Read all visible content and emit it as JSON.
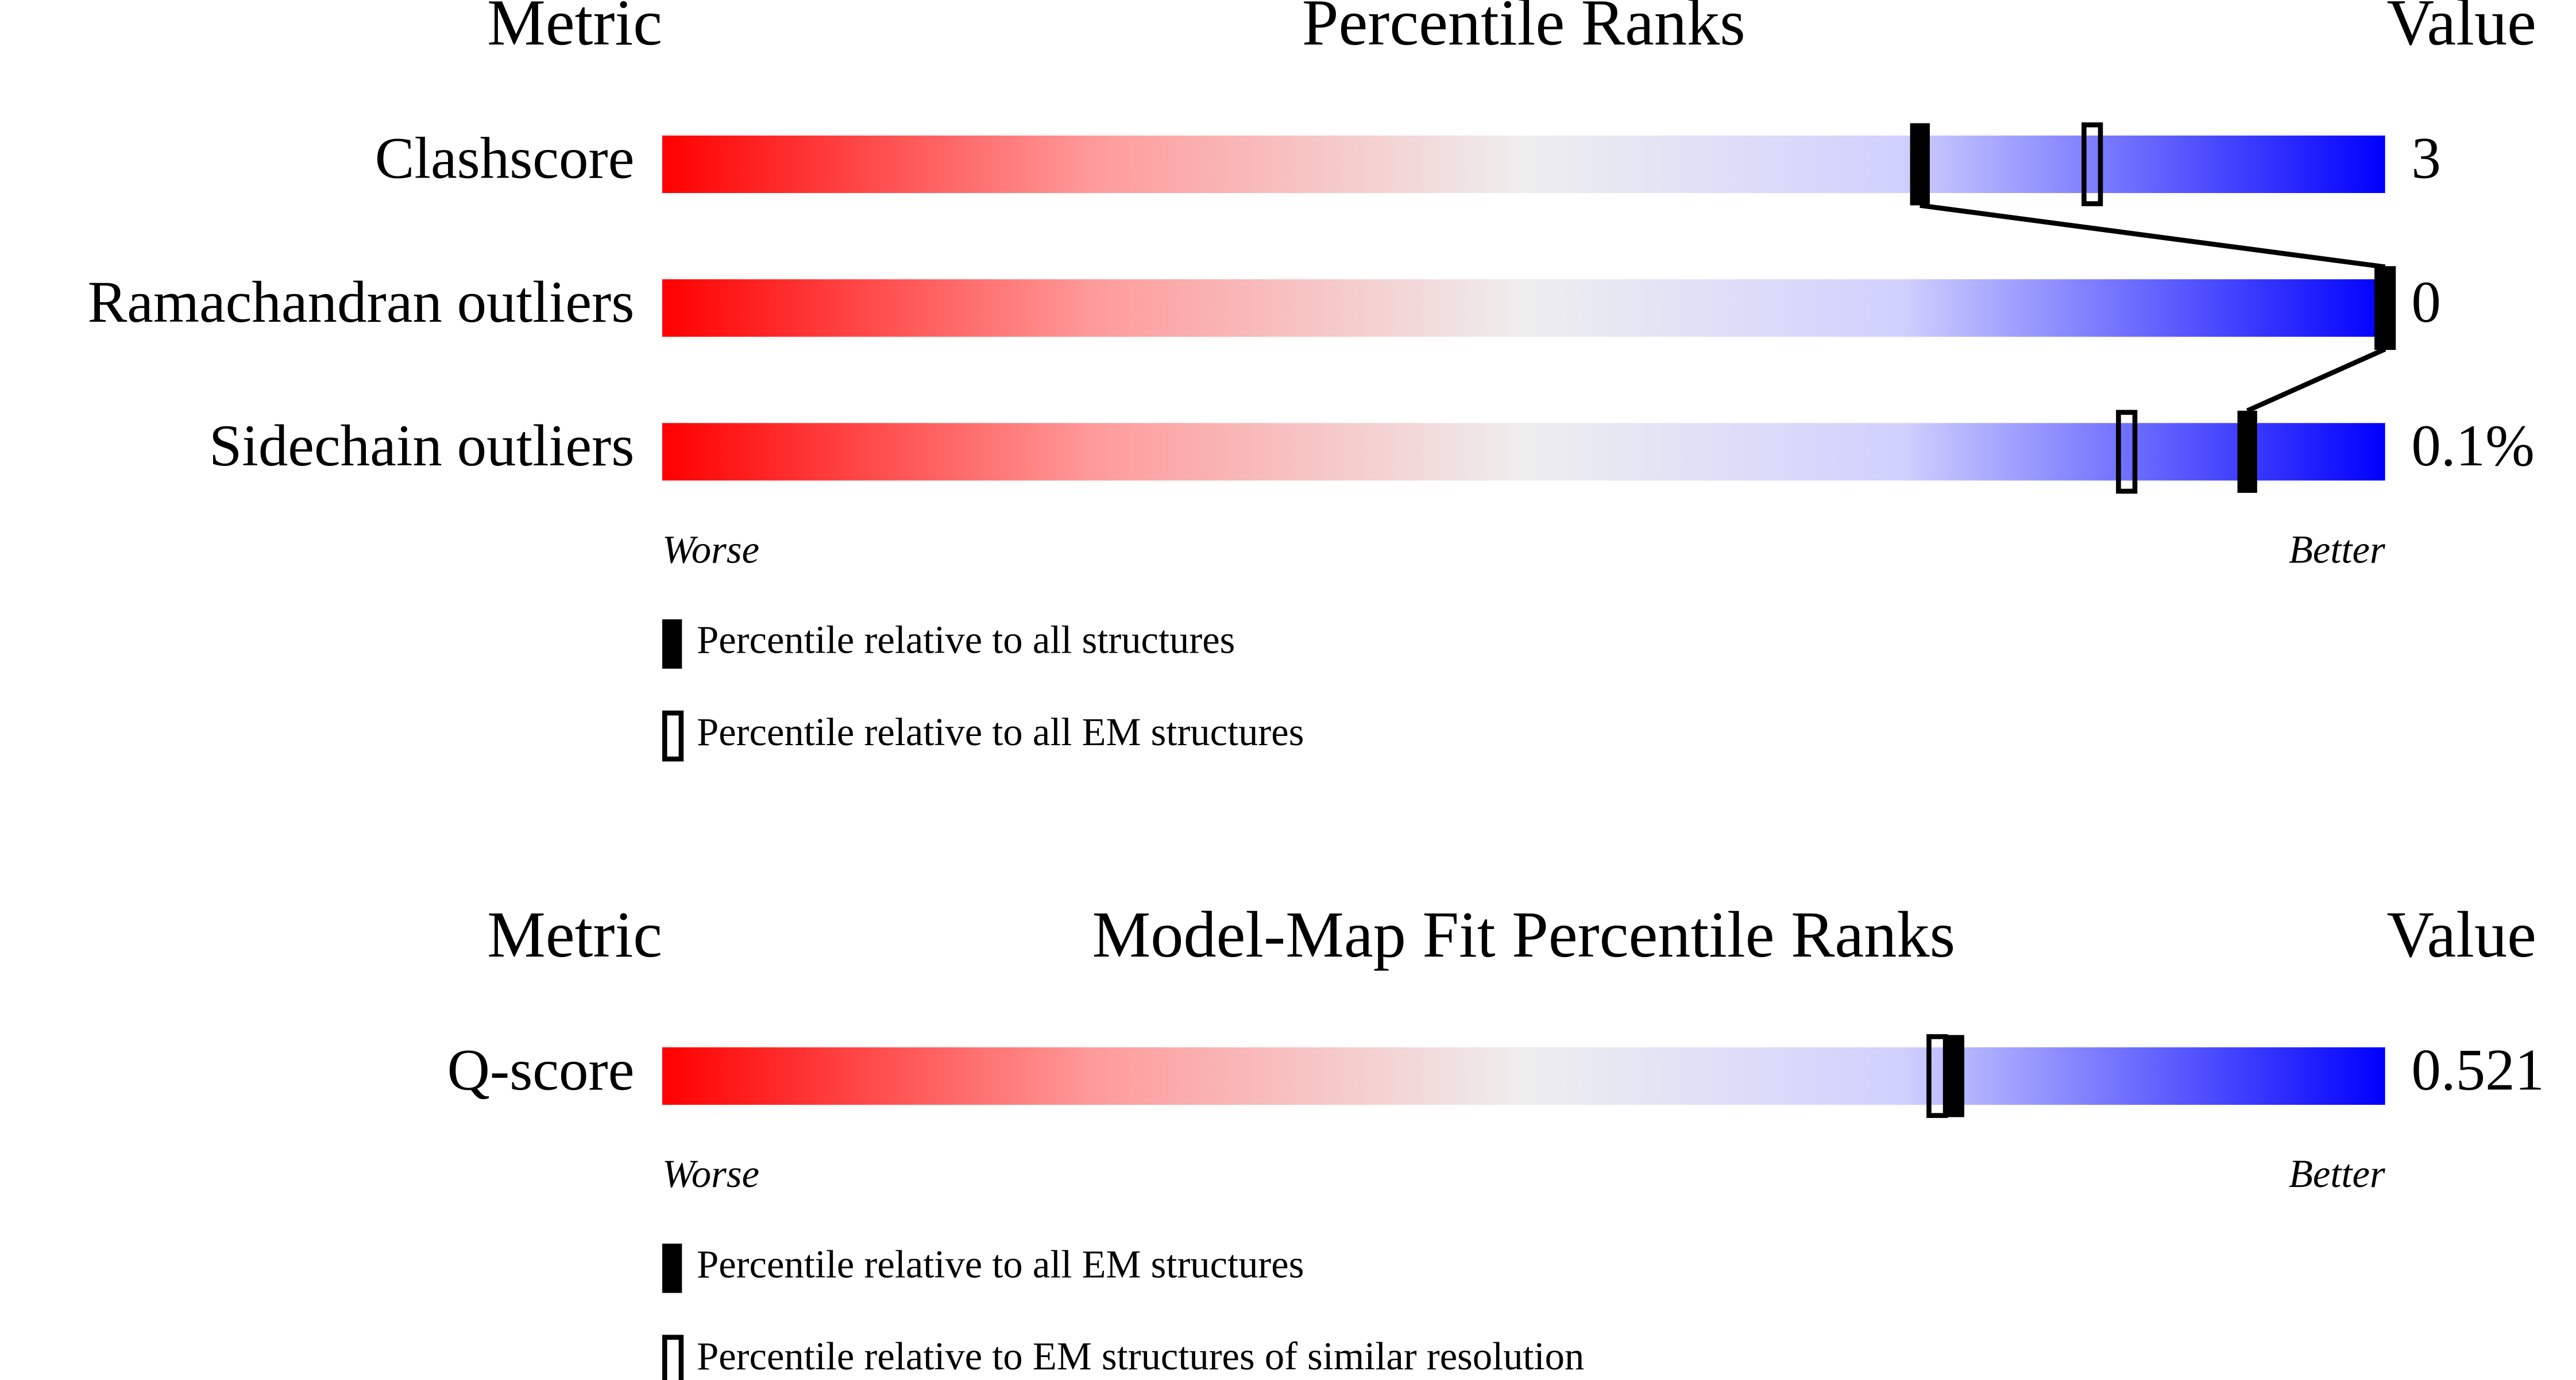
{
  "chart_data": [
    {
      "type": "percentile",
      "metric_header": "Metric",
      "title": "Percentile Ranks",
      "value_header": "Value",
      "categories": [
        "Clashscore",
        "Ramachandran outliers",
        "Sidechain outliers"
      ],
      "metric_values": [
        "3",
        "0",
        "0.1%"
      ],
      "series": [
        {
          "name": "Percentile relative to all structures",
          "style": "filled",
          "values": [
            73,
            100,
            92
          ]
        },
        {
          "name": "Percentile relative to all EM structures",
          "style": "open",
          "values": [
            83,
            100,
            85
          ]
        }
      ],
      "xlim": [
        0,
        100
      ],
      "low_label": "Worse",
      "high_label": "Better"
    },
    {
      "type": "percentile",
      "metric_header": "Metric",
      "title": "Model-Map Fit Percentile Ranks",
      "value_header": "Value",
      "categories": [
        "Q-score"
      ],
      "metric_values": [
        "0.521"
      ],
      "series": [
        {
          "name": "Percentile relative to all EM structures",
          "style": "filled",
          "values": [
            75
          ]
        },
        {
          "name": "Percentile relative to EM structures of similar resolution",
          "style": "open",
          "values": [
            74
          ]
        }
      ],
      "xlim": [
        0,
        100
      ],
      "low_label": "Worse",
      "high_label": "Better"
    }
  ]
}
